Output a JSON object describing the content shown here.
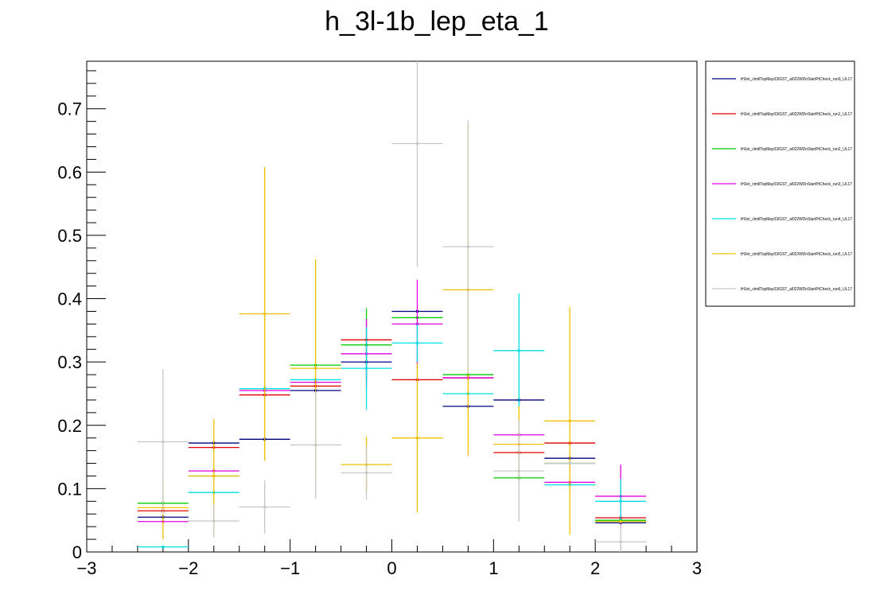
{
  "chart_data": {
    "type": "scatter",
    "title": "h_3l-1b_lep_eta_1",
    "xlabel": "",
    "ylabel": "",
    "xlim": [
      -3,
      3
    ],
    "ylim": [
      0,
      0.775
    ],
    "x_ticks": [
      -3,
      -2,
      -1,
      0,
      1,
      2,
      3
    ],
    "x_tick_labels": [
      "−3",
      "−2",
      "−1",
      "0",
      "1",
      "2",
      "3"
    ],
    "y_ticks": [
      0,
      0.1,
      0.2,
      0.3,
      0.4,
      0.5,
      0.6,
      0.7
    ],
    "y_tick_labels": [
      "0",
      "0.1",
      "0.2",
      "0.3",
      "0.4",
      "0.5",
      "0.6",
      "0.7"
    ],
    "grid": false,
    "legend_position": "right",
    "bins": [
      -2.25,
      -1.75,
      -1.25,
      -0.75,
      -0.25,
      0.25,
      0.75,
      1.25,
      1.75,
      2.25
    ],
    "bin_width": 0.5,
    "series": [
      {
        "name": "tHJet_ctmllTopMay03/GST_al022WDnStartPtCheck_run0_UL17",
        "color": "#000080",
        "values": [
          0.055,
          0.172,
          0.178,
          0.255,
          0.3,
          0.38,
          0.23,
          0.24,
          0.148,
          0.046
        ],
        "errors": [
          0.0,
          0.0,
          0.0,
          0.0,
          0.0,
          0.0,
          0.0,
          0.0,
          0.0,
          0.0
        ]
      },
      {
        "name": "tHJet_ctmllTopMay03/GST_al022WDnStartPtCheck_run1_UL17",
        "color": "#e00000",
        "values": [
          0.065,
          0.165,
          0.248,
          0.262,
          0.335,
          0.272,
          0.275,
          0.157,
          0.172,
          0.054
        ],
        "errors": [
          0.0,
          0.0,
          0.0,
          0.0,
          0.0,
          0.0,
          0.0,
          0.0,
          0.0,
          0.0
        ]
      },
      {
        "name": "tHJet_ctmllTopMay03/GST_al022WDnStartPtCheck_run2_UL17",
        "color": "#00cc00",
        "values": [
          0.077,
          0.12,
          0.258,
          0.295,
          0.327,
          0.37,
          0.28,
          0.117,
          0.14,
          0.05
        ],
        "errors": [
          0.0,
          0.0,
          0.0,
          0.0,
          0.058,
          0.0,
          0.0,
          0.0,
          0.0,
          0.0
        ]
      },
      {
        "name": "tHJet_ctmllTopMay03/GST_al022WDnStartPtCheck_run3_UL17",
        "color": "#e000e0",
        "values": [
          0.048,
          0.128,
          0.255,
          0.268,
          0.313,
          0.36,
          0.275,
          0.185,
          0.11,
          0.088
        ],
        "errors": [
          0.0,
          0.0,
          0.0,
          0.0,
          0.055,
          0.07,
          0.0,
          0.0,
          0.0,
          0.05
        ]
      },
      {
        "name": "tHJet_ctmllTopMay03/GST_al022WDnStartPtCheck_run4_UL17",
        "color": "#00e0e0",
        "values": [
          0.008,
          0.094,
          0.258,
          0.272,
          0.29,
          0.33,
          0.25,
          0.318,
          0.106,
          0.08
        ],
        "errors": [
          0.0,
          0.0,
          0.0,
          0.0,
          0.065,
          0.03,
          0.0,
          0.09,
          0.0,
          0.035
        ]
      },
      {
        "name": "tHJet_ctmllTopMay03/GST_al022WDnStartPtCheck_run5_UL17",
        "color": "#f0c000",
        "values": [
          0.07,
          0.12,
          0.376,
          0.29,
          0.138,
          0.18,
          0.414,
          0.17,
          0.207,
          0.048
        ],
        "errors": [
          0.05,
          0.09,
          0.232,
          0.172,
          0.044,
          0.118,
          0.262,
          0.06,
          0.18,
          0.0
        ]
      },
      {
        "name": "tHJet_ctmllTopMay03/GST_al022WDnStartPtCheck_run6_UL17",
        "color": "#c8c8c8",
        "values": [
          0.174,
          0.049,
          0.071,
          0.169,
          0.125,
          0.645,
          0.482,
          0.128,
          0.14,
          0.016
        ],
        "errors": [
          0.115,
          0.026,
          0.042,
          0.085,
          0.042,
          0.195,
          0.2,
          0.08,
          0.0,
          0.028
        ]
      }
    ]
  }
}
